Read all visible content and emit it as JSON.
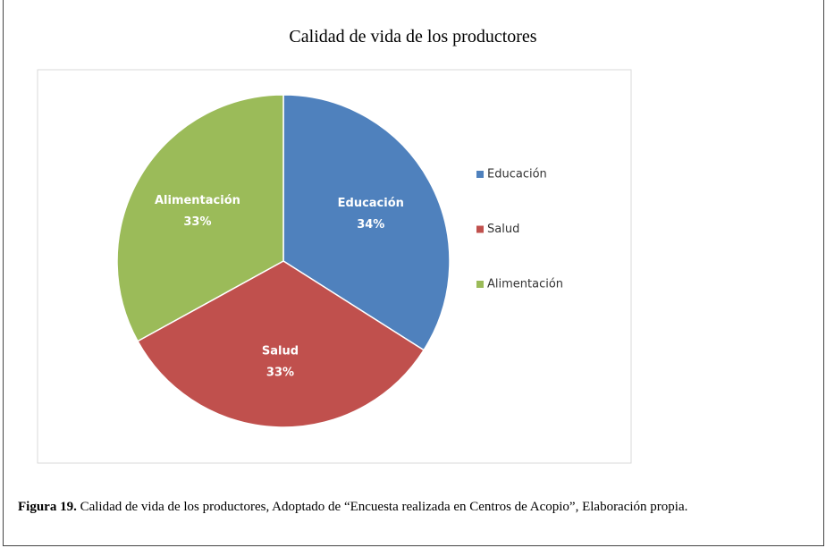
{
  "chart_data": {
    "type": "pie",
    "title": "Calidad de vida de los productores",
    "categories": [
      "Educación",
      "Salud",
      "Alimentación"
    ],
    "values": [
      34,
      33,
      33
    ],
    "value_labels": [
      "34%",
      "33%",
      "33%"
    ],
    "colors": [
      "#4f81bd",
      "#c0504d",
      "#9bbb59"
    ],
    "legend": "right"
  },
  "caption_label": "Figura 19.",
  "caption": "Calidad de vida de los productores,  Adoptado de  “Encuesta realizada en Centros de Acopio”, Elaboración propia."
}
